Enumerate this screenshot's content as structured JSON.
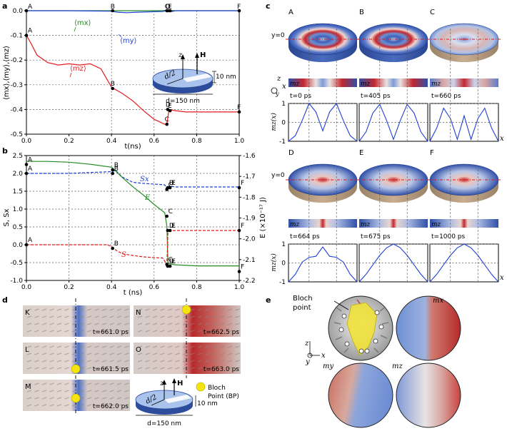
{
  "panel_labels": [
    "a",
    "b",
    "c",
    "d",
    "e"
  ],
  "chart_data": [
    {
      "panel": "a",
      "type": "line",
      "xlabel": "t(ns)",
      "ylabel": "⟨mx⟩,⟨my⟩,⟨mz⟩",
      "xlim": [
        0.0,
        1.0
      ],
      "ylim": [
        -0.5,
        0.0
      ],
      "xticks": [
        "0.0",
        "0.2",
        "0.4",
        "0.6",
        "0.8",
        "1.0"
      ],
      "yticks": [
        "0.0",
        "-0.1",
        "-0.2",
        "-0.3",
        "-0.4",
        "-0.5"
      ],
      "series": [
        {
          "name": "⟨mx⟩",
          "color": "#228B22",
          "x": [
            0,
            0.1,
            0.2,
            0.3,
            0.4,
            0.5,
            0.6,
            0.64,
            0.66,
            0.7,
            0.8,
            1.0
          ],
          "y": [
            0,
            0,
            0,
            0,
            0,
            0,
            0,
            0,
            0.002,
            0,
            0,
            0
          ]
        },
        {
          "name": "⟨my⟩",
          "color": "#1f3fd6",
          "x": [
            0,
            0.2,
            0.4,
            0.43,
            0.47,
            0.52,
            0.6,
            0.64,
            0.66,
            0.68,
            0.7,
            0.8,
            1.0
          ],
          "y": [
            0,
            0,
            -0.002,
            -0.006,
            -0.008,
            -0.006,
            -0.004,
            -0.003,
            0,
            -0.004,
            0,
            0,
            0
          ]
        },
        {
          "name": "⟨mz⟩",
          "color": "#e41a1c",
          "x": [
            0,
            0.02,
            0.05,
            0.1,
            0.15,
            0.2,
            0.25,
            0.3,
            0.35,
            0.4,
            0.45,
            0.5,
            0.55,
            0.6,
            0.65,
            0.66,
            0.67,
            0.7,
            0.75,
            0.8,
            0.9,
            1.0
          ],
          "y": [
            -0.1,
            -0.13,
            -0.18,
            -0.21,
            -0.22,
            -0.215,
            -0.22,
            -0.215,
            -0.235,
            -0.31,
            -0.335,
            -0.365,
            -0.405,
            -0.44,
            -0.46,
            -0.46,
            -0.4,
            -0.405,
            -0.41,
            -0.41,
            -0.41,
            -0.41
          ]
        }
      ],
      "point_labels": [
        {
          "name": "A",
          "x": 0.0,
          "y": 0.0
        },
        {
          "name": "B",
          "x": 0.405,
          "y": 0.0
        },
        {
          "name": "C",
          "x": 0.66,
          "y": 0.0
        },
        {
          "name": "D",
          "x": 0.664,
          "y": 0.0
        },
        {
          "name": "E",
          "x": 0.675,
          "y": 0.0
        },
        {
          "name": "F",
          "x": 1.0,
          "y": 0.0
        },
        {
          "name": "A",
          "x": 0.0,
          "y": -0.1
        },
        {
          "name": "B",
          "x": 0.405,
          "y": -0.315
        },
        {
          "name": "C",
          "x": 0.66,
          "y": -0.46
        },
        {
          "name": "D",
          "x": 0.664,
          "y": -0.4
        },
        {
          "name": "E",
          "x": 0.675,
          "y": -0.405
        },
        {
          "name": "F",
          "x": 1.0,
          "y": -0.41
        }
      ],
      "annotations": [
        "d/2",
        "10 nm",
        "d=150 nm",
        "z",
        "H"
      ]
    },
    {
      "panel": "b",
      "type": "line",
      "xlabel": "t (ns)",
      "ylabel": "S, Sx",
      "ylabel_right": "E (×10⁻¹⁷ J)",
      "xlim": [
        0.0,
        1.0
      ],
      "ylim": [
        -1.0,
        2.5
      ],
      "ylim_right": [
        -2.2,
        -1.6
      ],
      "xticks": [
        "0.0",
        "0.2",
        "0.4",
        "0.6",
        "0.8",
        "1.0"
      ],
      "yticks": [
        "2.5",
        "2.0",
        "1.5",
        "1.0",
        "0.5",
        "0.0",
        "-0.5",
        "-1.0"
      ],
      "yticks_right": [
        "-1.6",
        "-1.7",
        "-1.8",
        "-1.9",
        "-2.0",
        "-2.1",
        "-2.2"
      ],
      "series": [
        {
          "name": "Sx",
          "color": "#1f3fd6",
          "dashed": true,
          "x": [
            0,
            0.2,
            0.4,
            0.42,
            0.45,
            0.5,
            0.55,
            0.6,
            0.65,
            0.66,
            0.67,
            0.7,
            0.8,
            1.0
          ],
          "y": [
            2.0,
            2.0,
            2.05,
            2.08,
            1.9,
            1.75,
            1.72,
            1.7,
            1.68,
            1.55,
            1.65,
            1.62,
            1.62,
            1.62
          ]
        },
        {
          "name": "E",
          "color": "#228B22",
          "axis": "right",
          "x": [
            0,
            0.1,
            0.2,
            0.3,
            0.4,
            0.42,
            0.45,
            0.5,
            0.55,
            0.6,
            0.65,
            0.66,
            0.665,
            0.67,
            0.7,
            0.8,
            1.0
          ],
          "y": [
            -1.628,
            -1.628,
            -1.632,
            -1.642,
            -1.656,
            -1.675,
            -1.705,
            -1.75,
            -1.79,
            -1.835,
            -1.875,
            -1.94,
            -2.115,
            -2.12,
            -2.125,
            -2.13,
            -2.13
          ]
        },
        {
          "name": "S",
          "color": "#e41a1c",
          "dashed": true,
          "x": [
            0,
            0.2,
            0.38,
            0.4,
            0.42,
            0.45,
            0.5,
            0.55,
            0.6,
            0.64,
            0.66,
            0.665,
            0.67,
            0.7,
            0.8,
            1.0
          ],
          "y": [
            0.0,
            0.0,
            0.0,
            -0.05,
            -0.15,
            -0.25,
            -0.3,
            -0.34,
            -0.36,
            -0.37,
            -0.55,
            0.35,
            0.38,
            0.4,
            0.4,
            0.4
          ]
        }
      ],
      "point_labels": [
        {
          "name": "A",
          "x": 0.0,
          "y": 2.25
        },
        {
          "name": "A",
          "x": 0.0,
          "y": 2.0
        },
        {
          "name": "A",
          "x": 0.0,
          "y": 0.0
        },
        {
          "name": "B",
          "x": 0.405,
          "y": 2.1
        },
        {
          "name": "B",
          "x": 0.405,
          "y": 2.0
        },
        {
          "name": "B",
          "x": 0.405,
          "y": -0.1
        },
        {
          "name": "C",
          "x": 0.66,
          "y": 0.8
        },
        {
          "name": "C",
          "x": 0.66,
          "y": 1.55
        },
        {
          "name": "C",
          "x": 0.66,
          "y": -0.55
        },
        {
          "name": "D",
          "x": 0.664,
          "y": 1.6
        },
        {
          "name": "D",
          "x": 0.664,
          "y": 0.4
        },
        {
          "name": "D",
          "x": 0.664,
          "y": -0.6
        },
        {
          "name": "E",
          "x": 0.675,
          "y": 1.6
        },
        {
          "name": "E",
          "x": 0.675,
          "y": 0.4
        },
        {
          "name": "E",
          "x": 0.675,
          "y": -0.6
        },
        {
          "name": "F",
          "x": 1.0,
          "y": 1.6
        },
        {
          "name": "F",
          "x": 1.0,
          "y": 0.4
        },
        {
          "name": "F",
          "x": 1.0,
          "y": -0.75
        }
      ]
    },
    {
      "panel": "c",
      "type": "line",
      "xlabel": "x",
      "ylabel": "mz(x)",
      "ylim": [
        -1,
        1
      ],
      "yticks": [
        "1",
        "0",
        "-1"
      ],
      "snapshots": [
        {
          "name": "A",
          "time": "t=0 ps",
          "y": [
            -1,
            -0.7,
            0.1,
            1.0,
            0.55,
            -0.45,
            0.55,
            1.0,
            0.1,
            -0.7,
            -1
          ]
        },
        {
          "name": "B",
          "time": "t=405 ps",
          "y": [
            -1,
            -0.5,
            0.5,
            0.95,
            0.1,
            -0.9,
            0.1,
            0.95,
            0.5,
            -0.5,
            -1
          ]
        },
        {
          "name": "C",
          "time": "t=660 ps",
          "y": [
            -1,
            -0.3,
            0.75,
            0.2,
            -0.9,
            0.35,
            -0.9,
            0.2,
            0.75,
            -0.3,
            -1
          ]
        },
        {
          "name": "D",
          "time": "t=664 ps",
          "y": [
            -1,
            -0.6,
            0.05,
            0.3,
            0.35,
            0.85,
            0.35,
            0.3,
            0.05,
            -0.6,
            -1
          ]
        },
        {
          "name": "E",
          "time": "t=675 ps",
          "y": [
            -1,
            -0.6,
            -0.1,
            0.4,
            0.8,
            1.0,
            0.8,
            0.4,
            -0.1,
            -0.6,
            -1
          ]
        },
        {
          "name": "F",
          "time": "t=1000 ps",
          "y": [
            -1,
            -0.6,
            -0.1,
            0.4,
            0.8,
            1.0,
            0.8,
            0.4,
            -0.1,
            -0.6,
            -1
          ]
        }
      ],
      "annotations": [
        "y=0",
        "mz",
        "z",
        "y",
        "x"
      ]
    }
  ],
  "panel_d": {
    "frames": [
      {
        "name": "K",
        "time": "t=661.0 ps"
      },
      {
        "name": "N",
        "time": "t=662.5 ps"
      },
      {
        "name": "L",
        "time": "t=661.5 ps"
      },
      {
        "name": "O",
        "time": "t=663.0 ps"
      },
      {
        "name": "M",
        "time": "t=662.0 ps"
      }
    ],
    "legend_line1": "Bloch",
    "legend_line2": "Point (BP)",
    "disk_width": "d=150 nm",
    "disk_height": "10 nm",
    "disk_half": "d/2"
  },
  "panel_e": {
    "bloch_line1": "Bloch",
    "bloch_line2": "point",
    "mx": "mx",
    "my": "my",
    "mz": "mz",
    "axes": [
      "z",
      "y",
      "x"
    ]
  },
  "colors": {
    "red": "#e41a1c",
    "green": "#228B22",
    "blue": "#1f3fd6",
    "disk_blue": "#3d5fb5",
    "disk_red": "#c3272e",
    "point_yellow": "#f5e50f"
  }
}
